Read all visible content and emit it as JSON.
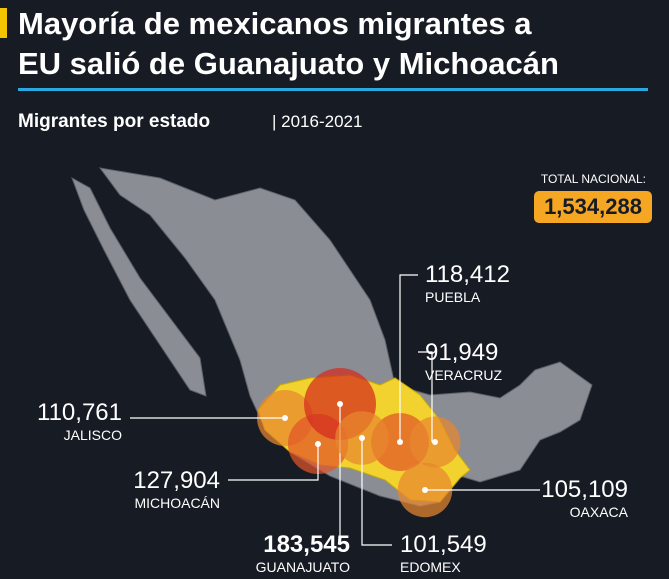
{
  "header": {
    "title_line1": "Mayoría de mexicanos migrantes a",
    "title_line2": "EU salió de Guanajuato y Michoacán",
    "subtitle": "Migrantes por estado",
    "period": "| 2016-2021"
  },
  "total": {
    "label": "TOTAL NACIONAL:",
    "value_label": "1,534,288"
  },
  "states": [
    {
      "name": "PUEBLA",
      "value": 118412,
      "value_label": "118,412"
    },
    {
      "name": "VERACRUZ",
      "value": 91949,
      "value_label": "91,949"
    },
    {
      "name": "JALISCO",
      "value": 110761,
      "value_label": "110,761"
    },
    {
      "name": "MICHOACÁN",
      "value": 127904,
      "value_label": "127,904"
    },
    {
      "name": "OAXACA",
      "value": 105109,
      "value_label": "105,109"
    },
    {
      "name": "GUANAJUATO",
      "value": 183545,
      "value_label": "183,545"
    },
    {
      "name": "EDOMEX",
      "value": 101549,
      "value_label": "101,549"
    }
  ]
}
